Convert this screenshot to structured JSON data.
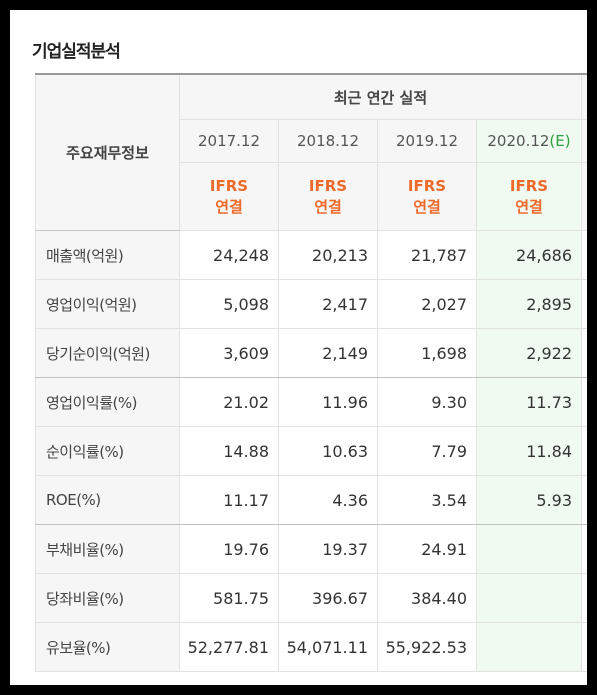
{
  "section_title": "기업실적분석",
  "header": {
    "corner": "주요재무정보",
    "group": "최근 연간 실적",
    "periods": [
      {
        "year": "2017.12",
        "mark": "",
        "type1": "IFRS",
        "type2": "연결"
      },
      {
        "year": "2018.12",
        "mark": "",
        "type1": "IFRS",
        "type2": "연결"
      },
      {
        "year": "2019.12",
        "mark": "",
        "type1": "IFRS",
        "type2": "연결"
      },
      {
        "year": "2020.12",
        "mark": "(E)",
        "type1": "IFRS",
        "type2": "연결"
      }
    ]
  },
  "rows": [
    {
      "label": "매출액(억원)",
      "values": [
        "24,248",
        "20,213",
        "21,787",
        "24,686"
      ]
    },
    {
      "label": "영업이익(억원)",
      "values": [
        "5,098",
        "2,417",
        "2,027",
        "2,895"
      ]
    },
    {
      "label": "당기순이익(억원)",
      "values": [
        "3,609",
        "2,149",
        "1,698",
        "2,922"
      ]
    },
    {
      "label": "영업이익률(%)",
      "values": [
        "21.02",
        "11.96",
        "9.30",
        "11.73"
      ]
    },
    {
      "label": "순이익률(%)",
      "values": [
        "14.88",
        "10.63",
        "7.79",
        "11.84"
      ]
    },
    {
      "label": "ROE(%)",
      "values": [
        "11.17",
        "4.36",
        "3.54",
        "5.93"
      ]
    },
    {
      "label": "부채비율(%)",
      "values": [
        "19.76",
        "19.37",
        "24.91",
        ""
      ]
    },
    {
      "label": "당좌비율(%)",
      "values": [
        "581.75",
        "396.67",
        "384.40",
        ""
      ]
    },
    {
      "label": "유보율(%)",
      "values": [
        "52,277.81",
        "54,071.11",
        "55,922.53",
        ""
      ]
    }
  ]
}
